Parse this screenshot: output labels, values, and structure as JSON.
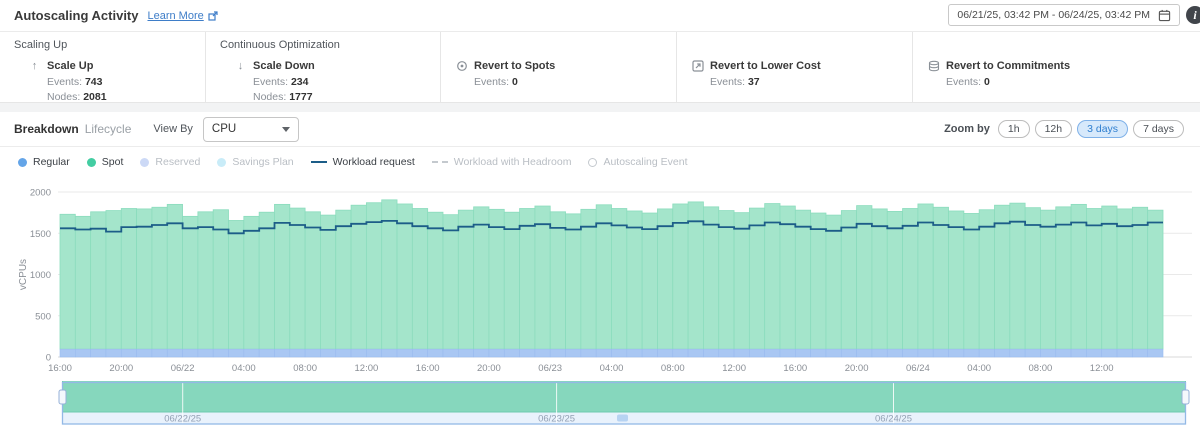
{
  "header": {
    "title": "Autoscaling Activity",
    "learn_more": "Learn More",
    "date_range": "06/21/25, 03:42 PM - 06/24/25, 03:42 PM"
  },
  "icons": {
    "learn_more": "external-link-icon",
    "date_picker": "calendar-icon",
    "info": "info-icon",
    "scale_up": "arrow-up-icon",
    "scale_down": "arrow-down-icon",
    "revert_spots": "spot-circle-icon",
    "revert_lower_cost": "arrow-out-box-icon",
    "revert_commitments": "layers-icon",
    "view_by": "chevron-down-icon",
    "info_glyph": "i"
  },
  "stats": {
    "cards": [
      {
        "group": "Scaling Up",
        "title": "Scale Up",
        "events_label": "Events:",
        "events": "743",
        "nodes_label": "Nodes:",
        "nodes": "2081"
      },
      {
        "group": "Continuous Optimization",
        "title": "Scale Down",
        "events_label": "Events:",
        "events": "234",
        "nodes_label": "Nodes:",
        "nodes": "1777"
      },
      {
        "title": "Revert to Spots",
        "events_label": "Events:",
        "events": "0"
      },
      {
        "title": "Revert to Lower Cost",
        "events_label": "Events:",
        "events": "37"
      },
      {
        "title": "Revert to Commitments",
        "events_label": "Events:",
        "events": "0"
      }
    ]
  },
  "controls": {
    "tabs": [
      {
        "label": "Breakdown",
        "active": true
      },
      {
        "label": "Lifecycle",
        "active": false
      }
    ],
    "view_by_label": "View By",
    "view_by_value": "CPU",
    "zoom_by_label": "Zoom by",
    "zoom_options": [
      {
        "label": "1h",
        "active": false
      },
      {
        "label": "12h",
        "active": false
      },
      {
        "label": "3 days",
        "active": true
      },
      {
        "label": "7 days",
        "active": false
      }
    ]
  },
  "legend": {
    "items": [
      {
        "label": "Regular",
        "swatch": "dot",
        "color": "#64a5e8",
        "active": true
      },
      {
        "label": "Spot",
        "swatch": "dot",
        "color": "#43cda2",
        "active": true
      },
      {
        "label": "Reserved",
        "swatch": "dot",
        "color": "#ccd9f6",
        "active": false
      },
      {
        "label": "Savings Plan",
        "swatch": "dot",
        "color": "#c9ecf8",
        "active": false
      },
      {
        "label": "Workload request",
        "swatch": "line",
        "color": "#1c5d88",
        "active": true
      },
      {
        "label": "Workload with Headroom",
        "swatch": "dashed-line",
        "color": "#c4c9ce",
        "active": false
      },
      {
        "label": "Autoscaling Event",
        "swatch": "circle-outline",
        "color": "#c4c9ce",
        "active": false
      }
    ]
  },
  "chart_data": [
    {
      "type": "area",
      "name": "vcpu-breakdown-stacked-hourly-columns",
      "title": "",
      "xlabel": "",
      "ylabel": "vCPUs",
      "ylim": [
        0,
        2000
      ],
      "yticks": [
        0,
        500,
        1000,
        1500,
        2000
      ],
      "grid": "horizontal",
      "bar_interval_hours": 1,
      "x_tick_every_bars": 4,
      "x_tick_labels": [
        "16:00",
        "20:00",
        "06/22",
        "04:00",
        "08:00",
        "12:00",
        "16:00",
        "20:00",
        "06/23",
        "04:00",
        "08:00",
        "12:00",
        "16:00",
        "20:00",
        "06/24",
        "04:00",
        "08:00",
        "12:00"
      ],
      "series": [
        {
          "name": "Regular",
          "type": "column",
          "color": "#a9c7f3",
          "stroke": "#9abbee",
          "value_constant": 95,
          "count": 72
        },
        {
          "name": "Spot",
          "type": "column",
          "color": "#a4e5cb",
          "stroke": "#8bdcbd",
          "values": [
            1730,
            1705,
            1760,
            1775,
            1800,
            1795,
            1815,
            1850,
            1705,
            1760,
            1785,
            1655,
            1705,
            1755,
            1850,
            1805,
            1760,
            1720,
            1780,
            1840,
            1870,
            1905,
            1855,
            1800,
            1755,
            1725,
            1780,
            1820,
            1790,
            1755,
            1800,
            1830,
            1760,
            1735,
            1790,
            1845,
            1800,
            1770,
            1745,
            1795,
            1855,
            1880,
            1820,
            1775,
            1750,
            1805,
            1860,
            1830,
            1780,
            1745,
            1720,
            1775,
            1835,
            1795,
            1765,
            1800,
            1855,
            1815,
            1770,
            1740,
            1785,
            1840,
            1865,
            1810,
            1780,
            1820,
            1850,
            1800,
            1830,
            1795,
            1815,
            1780
          ]
        },
        {
          "name": "Workload request",
          "type": "step-line",
          "color": "#1c5d88",
          "values": [
            1560,
            1545,
            1555,
            1520,
            1575,
            1580,
            1600,
            1620,
            1560,
            1575,
            1545,
            1500,
            1530,
            1560,
            1625,
            1600,
            1570,
            1540,
            1585,
            1615,
            1635,
            1650,
            1620,
            1585,
            1560,
            1535,
            1580,
            1605,
            1575,
            1550,
            1590,
            1610,
            1565,
            1545,
            1580,
            1620,
            1595,
            1570,
            1550,
            1585,
            1625,
            1645,
            1605,
            1575,
            1555,
            1595,
            1630,
            1610,
            1580,
            1550,
            1530,
            1570,
            1615,
            1585,
            1560,
            1590,
            1630,
            1600,
            1575,
            1545,
            1580,
            1620,
            1640,
            1600,
            1580,
            1605,
            1630,
            1595,
            1615,
            1585,
            1600,
            1630
          ]
        }
      ]
    },
    {
      "type": "area",
      "name": "navigator-minimap",
      "ylim": [
        0,
        2000
      ],
      "x_labels": [
        {
          "label": "06/22/25",
          "pos": 0.107
        },
        {
          "label": "06/23/25",
          "pos": 0.44
        },
        {
          "label": "06/24/25",
          "pos": 0.74
        }
      ],
      "area": {
        "name": "Spot",
        "color": "#86d7bd",
        "stroke": "#6fcbb0",
        "values": [
          1700,
          1690,
          1700,
          1710,
          1695,
          1700,
          1705,
          1700,
          1760,
          1700,
          1695,
          1700,
          1710,
          1700,
          1700,
          1705,
          1700,
          1690,
          1700,
          1705,
          1820,
          1710,
          1700,
          1705,
          1710,
          1700,
          1705,
          1700,
          1695,
          1700,
          1710,
          1740,
          1700,
          1695,
          1705,
          1700,
          1750,
          1700,
          1690,
          1700,
          1705,
          1700,
          1760,
          1700,
          1705,
          1790,
          1700,
          1695,
          1700,
          1840,
          1705,
          1700,
          1690,
          1700,
          1705,
          1750,
          1700,
          1695,
          1700,
          1705,
          1700,
          1760,
          1700,
          1690,
          1800,
          1700,
          1705,
          1820,
          1700,
          1695,
          1780,
          1700
        ]
      },
      "line": {
        "name": "Workload request",
        "color": "#1c5d88",
        "values": [
          1600,
          1560,
          1610,
          1590,
          1480,
          1600,
          1610,
          1570,
          1620,
          1500,
          1615,
          1600,
          1560,
          1605,
          1590,
          1610,
          1520,
          1600,
          1615,
          1580,
          1640,
          1700,
          1660,
          1650,
          1655,
          1660,
          1640,
          1655,
          1530,
          1640,
          1650,
          1600,
          1655,
          1540,
          1645,
          1655,
          1620,
          1490,
          1640,
          1650,
          1560,
          1650,
          1660,
          1630,
          1650,
          1655,
          1640,
          1660,
          1650,
          1645,
          1655,
          1650,
          1660,
          1520,
          1640,
          1600,
          1655,
          1500,
          1580,
          1650,
          1530,
          1620,
          1655,
          1640,
          1660,
          1650,
          1560,
          1640,
          1600,
          1520,
          1610,
          1650
        ]
      }
    }
  ],
  "colors": {
    "accent_blue": "#2f7fd0",
    "pill_active_bg": "#d7e9fb",
    "spot_teal": "#a4e5cb",
    "regular_blue": "#a9c7f3",
    "workload_navy": "#1c5d88",
    "navigator_frame": "#93b9e6"
  }
}
